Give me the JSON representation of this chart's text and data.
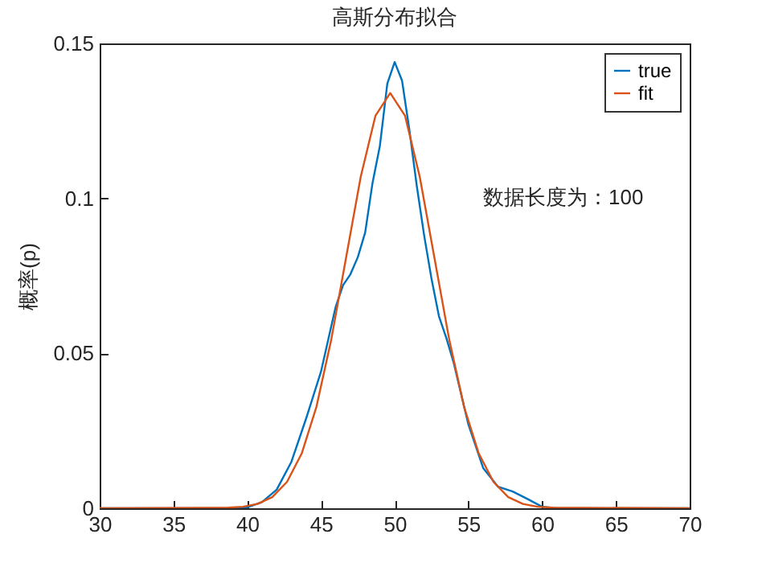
{
  "chart_data": {
    "type": "line",
    "title": "高斯分布拟合",
    "ylabel": "概率(p)",
    "xlim": [
      30,
      70
    ],
    "xticks": [
      30,
      35,
      40,
      45,
      50,
      55,
      60,
      65,
      70
    ],
    "ylim": [
      0,
      0.15
    ],
    "yticks": [
      0,
      0.05,
      0.1,
      0.15
    ],
    "grid": false,
    "legend": "top right",
    "marker": "none",
    "line_style": "solid",
    "annotations": [
      "数据长度为：100"
    ],
    "series": [
      {
        "name": "true",
        "color": "#0072bd",
        "x": [
          30,
          39,
          40,
          41,
          42,
          43,
          44,
          45,
          46,
          46.5,
          47,
          47.5,
          48,
          48.5,
          49,
          49.5,
          50,
          50.5,
          51,
          51.5,
          52,
          52.5,
          53,
          53.5,
          54,
          55,
          56,
          57,
          58,
          59,
          60,
          61,
          70
        ],
        "values": [
          0,
          0,
          0.0003,
          0.002,
          0.006,
          0.015,
          0.029,
          0.044,
          0.065,
          0.072,
          0.0755,
          0.081,
          0.089,
          0.105,
          0.117,
          0.137,
          0.144,
          0.138,
          0.122,
          0.104,
          0.088,
          0.074,
          0.062,
          0.055,
          0.047,
          0.027,
          0.013,
          0.007,
          0.0054,
          0.003,
          0.0005,
          0,
          0
        ]
      },
      {
        "name": "fit",
        "color": "#d95319",
        "x": [
          30,
          38.7,
          39.7,
          40.7,
          41.7,
          42.7,
          43.7,
          44.7,
          45.7,
          46.7,
          47.7,
          48.7,
          49.7,
          50.7,
          51.7,
          52.7,
          53.7,
          54.7,
          55.7,
          56.7,
          57.7,
          58.7,
          59.7,
          60.7,
          70
        ],
        "values": [
          0,
          0.0002,
          0.0005,
          0.0014,
          0.0036,
          0.0085,
          0.0177,
          0.0328,
          0.0544,
          0.0807,
          0.107,
          0.1267,
          0.134,
          0.1267,
          0.107,
          0.0807,
          0.0544,
          0.0328,
          0.0177,
          0.0085,
          0.0036,
          0.0014,
          0.0005,
          0.0002,
          0
        ]
      }
    ]
  }
}
